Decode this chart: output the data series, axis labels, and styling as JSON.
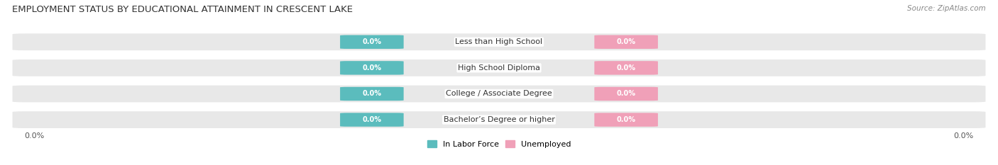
{
  "title": "EMPLOYMENT STATUS BY EDUCATIONAL ATTAINMENT IN CRESCENT LAKE",
  "source": "Source: ZipAtlas.com",
  "categories": [
    "Less than High School",
    "High School Diploma",
    "College / Associate Degree",
    "Bachelor’s Degree or higher"
  ],
  "in_labor_force": [
    0.0,
    0.0,
    0.0,
    0.0
  ],
  "unemployed": [
    0.0,
    0.0,
    0.0,
    0.0
  ],
  "labor_force_color": "#5bbcbd",
  "unemployed_color": "#f0a0b8",
  "bar_bg_color": "#e8e8e8",
  "x_left_label": "0.0%",
  "x_right_label": "0.0%",
  "title_fontsize": 9.5,
  "source_fontsize": 7.5,
  "label_fontsize": 8,
  "bar_height": 0.6,
  "figsize": [
    14.06,
    2.33
  ],
  "dpi": 100
}
